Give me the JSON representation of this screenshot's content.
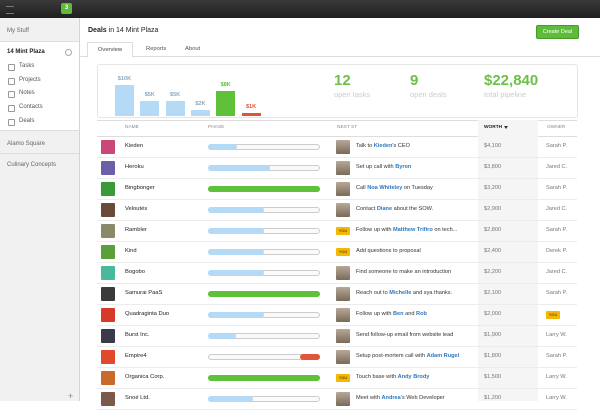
{
  "topbar": {
    "badge": "3"
  },
  "sidebar": {
    "heading": "My Stuff",
    "workspaces": [
      {
        "name": "14 Mint Plaza",
        "items": [
          "Tasks",
          "Projects",
          "Notes",
          "Contacts",
          "Deals"
        ]
      },
      {
        "name": "Alamo Square"
      },
      {
        "name": "Culinary Concepts"
      }
    ]
  },
  "header": {
    "title": "Deals",
    "title_suffix": "in 14 Mint Plaza",
    "button": "Create Deal"
  },
  "tabs": [
    "Overview",
    "Reports",
    "About"
  ],
  "summary": {
    "bars": [
      {
        "value": 10000,
        "label": "$10K",
        "color": "#b5daf5"
      },
      {
        "value": 5000,
        "label": "$5K",
        "color": "#b5daf5"
      },
      {
        "value": 5000,
        "label": "$5K",
        "color": "#b5daf5"
      },
      {
        "value": 2000,
        "label": "$2K",
        "color": "#b5daf5"
      },
      {
        "value": 8000,
        "label": "$8K",
        "color": "#5fc13a"
      },
      {
        "value": 1000,
        "label": "$1K",
        "color": "#e0543a"
      }
    ],
    "stats": [
      {
        "value": 12,
        "label": "open tasks"
      },
      {
        "value": 9,
        "label": "open deals"
      },
      {
        "value": "$22,840",
        "label": "total pipeline"
      }
    ]
  },
  "table": {
    "columns": [
      "NAME",
      "PHASE",
      "NEXT ST",
      "WORTH",
      "OWNER"
    ],
    "rows": [
      {
        "name": "Kieden",
        "logo_color": "#c9487a",
        "phase": 26,
        "phase_color": "#b5daf5",
        "next_step": [
          "Talk to ",
          "Kieden",
          "'s CEO"
        ],
        "worth": "$4,100",
        "owner": "Sarah P."
      },
      {
        "name": "Heroku",
        "logo_color": "#6a5fa8",
        "phase": 55,
        "phase_color": "#b5daf5",
        "next_step": [
          "Set up call with ",
          "Byron"
        ],
        "worth": "$3,800",
        "owner": "Jared C."
      },
      {
        "name": "Bingbonger",
        "logo_color": "#3a9a3a",
        "phase": 100,
        "phase_color": "#5fc13a",
        "next_step": [
          "Call ",
          "Noa Whiteley",
          " on Tuesday"
        ],
        "worth": "$3,200",
        "owner": "Sarah P."
      },
      {
        "name": "Veloutés",
        "logo_color": "#6a4a3a",
        "phase": 50,
        "phase_color": "#b5daf5",
        "next_step": [
          "Contact ",
          "Diane",
          " about the SOW."
        ],
        "worth": "$2,900",
        "owner": "Jared C."
      },
      {
        "name": "Rambler",
        "logo_color": "#8a8a6a",
        "phase": 50,
        "phase_color": "#b5daf5",
        "you_badge": "YOU",
        "next_step": [
          "Follow up with ",
          "Matthew Trifiro",
          " on tech..."
        ],
        "worth": "$2,800",
        "owner": "Sarah P."
      },
      {
        "name": "Kind",
        "logo_color": "#5aa03a",
        "phase": 50,
        "phase_color": "#b5daf5",
        "you_badge": "YOU",
        "next_step": [
          "Add questions to proposal"
        ],
        "worth": "$2,400",
        "owner": "Derek P."
      },
      {
        "name": "Bogobo",
        "logo_color": "#4ab89a",
        "phase": 50,
        "phase_color": "#b5daf5",
        "next_step": [
          "Find someone to make an introduction"
        ],
        "worth": "$2,200",
        "owner": "Jared C."
      },
      {
        "name": "Samurai PaaS",
        "logo_color": "#3a3a3a",
        "phase": 100,
        "phase_color": "#5fc13a",
        "next_step": [
          "Reach out to ",
          "Michelle",
          " and sya thanks."
        ],
        "worth": "$2,100",
        "owner": "Sarah P."
      },
      {
        "name": "Quadraginta Duo",
        "logo_color": "#d83a2a",
        "phase": 50,
        "phase_color": "#b5daf5",
        "next_step": [
          "Follow up with ",
          "Ben",
          " and ",
          "Rob"
        ],
        "worth": "$2,000",
        "owner_badge": "YOU"
      },
      {
        "name": "Burst Inc.",
        "logo_color": "#3a3a4a",
        "phase": 25,
        "phase_color": "#b5daf5",
        "next_step": [
          "Send follow-up email from website lead"
        ],
        "worth": "$1,900",
        "owner": "Larry W."
      },
      {
        "name": "Empire4",
        "logo_color": "#e04a2a",
        "phase": 18,
        "phase_color": "#e0543a",
        "phase_from_end": true,
        "next_step": [
          "Setup post-mortem call with ",
          "Adam Rugel"
        ],
        "worth": "$1,800",
        "owner": "Sarah P."
      },
      {
        "name": "Organica Corp.",
        "logo_color": "#c86a2a",
        "phase": 100,
        "phase_color": "#5fc13a",
        "you_badge": "YOU",
        "next_step": [
          "Touch base with ",
          "Andy Brody"
        ],
        "worth": "$1,500",
        "owner": "Larry W."
      },
      {
        "name": "Snoé Ltd.",
        "logo_color": "#7a5a4a",
        "phase": 40,
        "phase_color": "#b5daf5",
        "next_step": [
          "Meet with ",
          "Andrea",
          "'s Web Developer"
        ],
        "worth": "$1,200",
        "owner": "Larry W."
      }
    ]
  }
}
